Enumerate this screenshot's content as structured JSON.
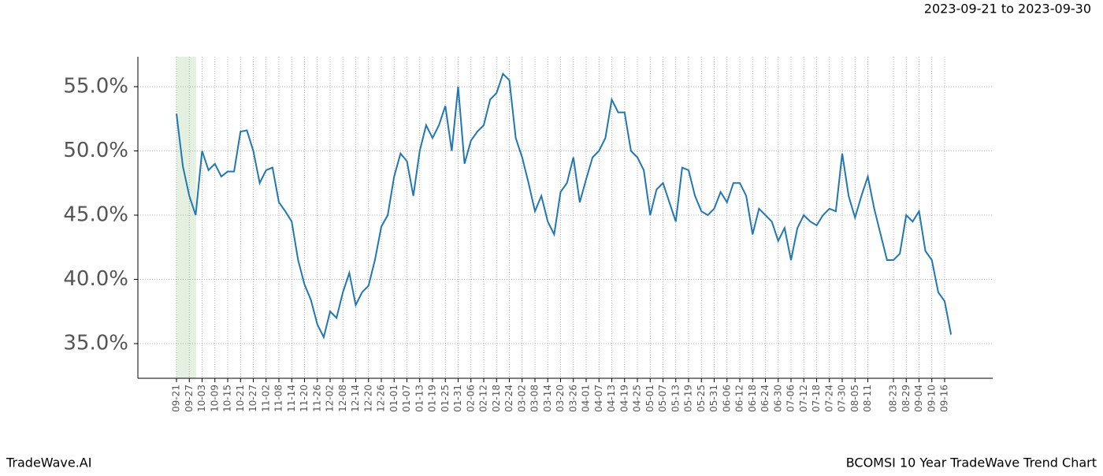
{
  "header": {
    "date_range": "2023-09-21 to 2023-09-30"
  },
  "footer": {
    "brand": "TradeWave.AI",
    "caption": "BCOMSI 10 Year TradeWave Trend Chart"
  },
  "chart_data": {
    "type": "line",
    "categories": [
      "09-21",
      null,
      "09-27",
      null,
      "10-03",
      null,
      "10-09",
      null,
      "10-15",
      null,
      "10-21",
      null,
      "10-27",
      null,
      "11-02",
      null,
      "11-08",
      null,
      "11-14",
      null,
      "11-20",
      null,
      "11-26",
      null,
      "12-02",
      null,
      "12-08",
      null,
      "12-14",
      null,
      "12-20",
      null,
      "12-26",
      null,
      "01-01",
      null,
      "01-07",
      null,
      "01-13",
      null,
      "01-19",
      null,
      "01-25",
      null,
      "01-31",
      null,
      "02-06",
      null,
      "02-12",
      null,
      "02-18",
      null,
      "02-24",
      null,
      "03-02",
      null,
      "03-08",
      null,
      "03-14",
      null,
      "03-20",
      null,
      "03-26",
      null,
      "04-01",
      null,
      "04-07",
      null,
      "04-13",
      null,
      "04-19",
      null,
      "04-25",
      null,
      "05-01",
      null,
      "05-07",
      null,
      "05-13",
      null,
      "05-19",
      null,
      "05-25",
      null,
      "05-31",
      null,
      "06-06",
      null,
      "06-12",
      null,
      "06-18",
      null,
      "06-24",
      null,
      "06-30",
      null,
      "07-06",
      null,
      "07-12",
      null,
      "07-18",
      null,
      "07-24",
      null,
      "07-30",
      null,
      "08-05",
      null,
      "08-11",
      null,
      null,
      null,
      "08-23",
      null,
      "08-29",
      null,
      "09-04",
      null,
      "09-10",
      null,
      "09-16",
      null
    ],
    "series": [
      {
        "color": "#1f77b4",
        "values": [
          52.9,
          48.8,
          46.5,
          45.0,
          50.0,
          48.5,
          49.0,
          48.0,
          48.4,
          48.4,
          51.5,
          51.6,
          50.0,
          47.5,
          48.5,
          48.7,
          46.0,
          45.3,
          44.5,
          41.5,
          39.6,
          38.4,
          36.5,
          35.5,
          37.5,
          37.0,
          39.0,
          40.5,
          38.0,
          39.0,
          39.5,
          41.5,
          44.1,
          45.0,
          48.0,
          49.8,
          49.2,
          46.5,
          50.0,
          52.0,
          51.0,
          52.0,
          53.5,
          50.0,
          55.0,
          49.0,
          50.8,
          51.5,
          52.0,
          54.0,
          54.5,
          56.0,
          55.5,
          51.0,
          49.5,
          47.5,
          45.3,
          46.5,
          44.5,
          43.5,
          46.8,
          47.5,
          49.5,
          46.0,
          47.8,
          49.5,
          50.0,
          51.0,
          54.0,
          53.0,
          53.0,
          50.0,
          49.5,
          48.5,
          45.0,
          47.0,
          47.5,
          46.0,
          44.5,
          48.7,
          48.5,
          46.5,
          45.3,
          45.0,
          45.5,
          46.8,
          46.0,
          47.5,
          47.5,
          46.5,
          43.5,
          45.5,
          45.0,
          44.5,
          43.0,
          44.0,
          41.5,
          44.0,
          45.0,
          44.5,
          44.2,
          45.0,
          45.5,
          45.3,
          49.8,
          46.5,
          44.8,
          46.5,
          48.0,
          45.5,
          43.5,
          41.5,
          41.5,
          42.0,
          45.0,
          44.5,
          45.3,
          42.2,
          41.5,
          39.0,
          38.3,
          35.7
        ]
      }
    ],
    "ylim": [
      32.3,
      57.33
    ],
    "yticks": [
      {
        "value": 35,
        "label": "35.0%"
      },
      {
        "value": 40,
        "label": "40.0%"
      },
      {
        "value": 45,
        "label": "45.0%"
      },
      {
        "value": 50,
        "label": "50.0%"
      },
      {
        "value": 55,
        "label": "55.0%"
      }
    ],
    "grid": true
  }
}
